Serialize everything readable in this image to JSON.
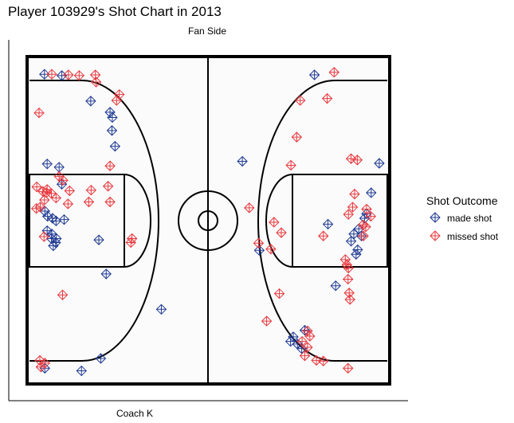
{
  "chart_data": {
    "type": "scatter",
    "title": "Player 103929's Shot Chart in 2013",
    "top_label": "Fan Side",
    "bottom_label": "Coach K",
    "xlim": [
      0,
      94
    ],
    "ylim": [
      0,
      50
    ],
    "legend": {
      "title": "Shot Outcome",
      "placement": "right",
      "entries": [
        {
          "key": "made",
          "label": "made shot",
          "color": "#1f3a93"
        },
        {
          "key": "missed",
          "label": "missed shot",
          "color": "#e8383d"
        }
      ]
    },
    "series": [
      {
        "key": "made",
        "points": [
          [
            4.5,
            47.3
          ],
          [
            9.0,
            47.1
          ],
          [
            16.5,
            43.2
          ],
          [
            21.5,
            41.5
          ],
          [
            22.1,
            40.7
          ],
          [
            22.0,
            38.7
          ],
          [
            22.8,
            36.3
          ],
          [
            5.2,
            33.6
          ],
          [
            8.3,
            33.1
          ],
          [
            9.0,
            30.5
          ],
          [
            4.6,
            26.4
          ],
          [
            5.3,
            25.6
          ],
          [
            6.6,
            25.3
          ],
          [
            7.5,
            24.9
          ],
          [
            9.6,
            25.1
          ],
          [
            5.2,
            23.4
          ],
          [
            6.3,
            22.2
          ],
          [
            6.8,
            21.1
          ],
          [
            7.4,
            21.6
          ],
          [
            7.6,
            22.2
          ],
          [
            6.4,
            22.9
          ],
          [
            18.6,
            22.0
          ],
          [
            20.5,
            16.8
          ],
          [
            34.8,
            11.4
          ],
          [
            19.1,
            3.9
          ],
          [
            14.1,
            2.0
          ],
          [
            4.6,
            2.4
          ],
          [
            74.5,
            47.2
          ],
          [
            91.3,
            33.7
          ],
          [
            55.8,
            34.0
          ],
          [
            78.0,
            24.4
          ],
          [
            89.2,
            29.2
          ],
          [
            88.0,
            26.0
          ],
          [
            87.5,
            25.3
          ],
          [
            86.0,
            23.7
          ],
          [
            86.7,
            22.6
          ],
          [
            84.7,
            22.9
          ],
          [
            84.0,
            21.8
          ],
          [
            85.3,
            19.8
          ],
          [
            85.7,
            20.5
          ],
          [
            80.0,
            15.0
          ],
          [
            60.2,
            20.4
          ],
          [
            68.3,
            6.5
          ],
          [
            69.0,
            7.2
          ],
          [
            70.1,
            6.1
          ],
          [
            71.2,
            5.4
          ],
          [
            72.0,
            8.2
          ]
        ]
      },
      {
        "key": "missed",
        "points": [
          [
            6.4,
            47.3
          ],
          [
            10.7,
            47.2
          ],
          [
            13.5,
            47.1
          ],
          [
            17.7,
            47.2
          ],
          [
            17.9,
            46.1
          ],
          [
            23.2,
            43.3
          ],
          [
            23.9,
            44.2
          ],
          [
            3.1,
            41.4
          ],
          [
            21.5,
            33.3
          ],
          [
            16.6,
            29.6
          ],
          [
            8.3,
            31.7
          ],
          [
            9.3,
            31.1
          ],
          [
            2.5,
            30.1
          ],
          [
            4.1,
            29.4
          ],
          [
            5.2,
            29.7
          ],
          [
            6.3,
            29.1
          ],
          [
            7.5,
            28.4
          ],
          [
            2.4,
            26.8
          ],
          [
            3.4,
            27.0
          ],
          [
            4.5,
            28.1
          ],
          [
            5.0,
            29.2
          ],
          [
            11.0,
            29.5
          ],
          [
            10.6,
            27.5
          ],
          [
            16.0,
            27.8
          ],
          [
            21.5,
            27.8
          ],
          [
            21.0,
            30.2
          ],
          [
            4.4,
            22.5
          ],
          [
            27.2,
            22.2
          ],
          [
            26.9,
            21.6
          ],
          [
            9.2,
            13.6
          ],
          [
            3.3,
            3.6
          ],
          [
            3.6,
            2.6
          ],
          [
            4.6,
            3.2
          ],
          [
            79.6,
            47.6
          ],
          [
            77.8,
            43.6
          ],
          [
            70.8,
            43.3
          ],
          [
            69.9,
            37.7
          ],
          [
            68.4,
            33.4
          ],
          [
            84.0,
            34.4
          ],
          [
            85.6,
            34.2
          ],
          [
            57.6,
            26.9
          ],
          [
            64.0,
            24.7
          ],
          [
            63.2,
            20.6
          ],
          [
            60.0,
            21.5
          ],
          [
            65.9,
            23.1
          ],
          [
            76.8,
            22.6
          ],
          [
            87.2,
            22.6
          ],
          [
            87.1,
            24.3
          ],
          [
            87.8,
            24.0
          ],
          [
            88.0,
            26.7
          ],
          [
            89.1,
            25.6
          ],
          [
            84.9,
            29.0
          ],
          [
            84.4,
            27.0
          ],
          [
            83.3,
            25.9
          ],
          [
            83.3,
            17.7
          ],
          [
            82.5,
            19.0
          ],
          [
            82.9,
            18.2
          ],
          [
            83.2,
            16.0
          ],
          [
            83.5,
            13.9
          ],
          [
            83.7,
            12.9
          ],
          [
            65.4,
            13.8
          ],
          [
            62.1,
            9.6
          ],
          [
            72.7,
            8.1
          ],
          [
            73.3,
            7.3
          ],
          [
            71.3,
            6.5
          ],
          [
            72.7,
            5.6
          ],
          [
            75.0,
            3.6
          ],
          [
            76.8,
            3.5
          ],
          [
            72.0,
            4.3
          ],
          [
            83.2,
            2.4
          ]
        ]
      }
    ]
  }
}
